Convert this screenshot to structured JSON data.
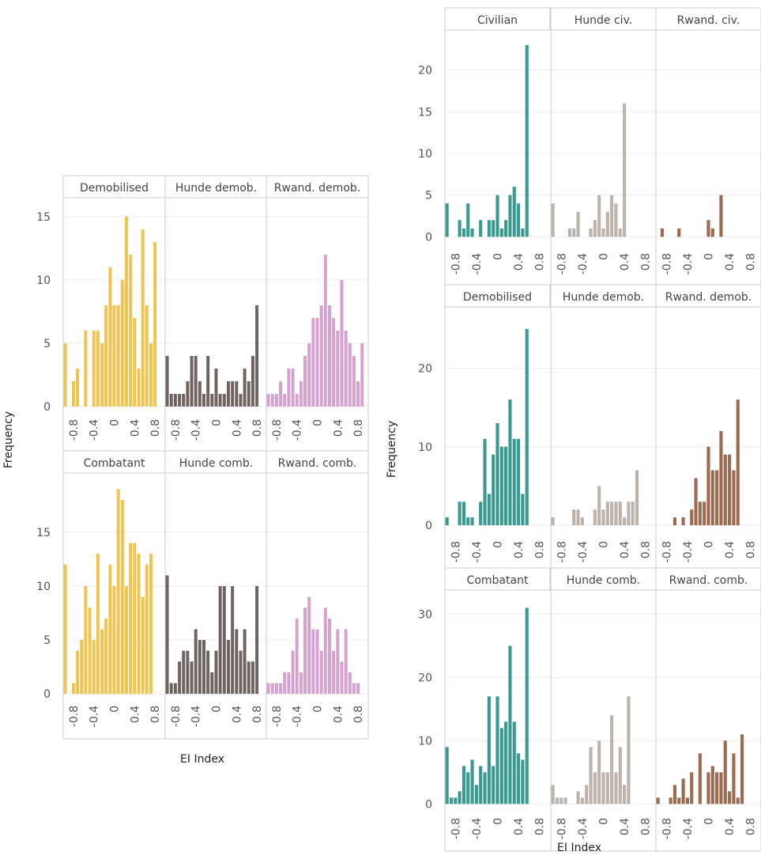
{
  "colors": {
    "demob_group": "#F0C44E",
    "hunde_demob": "#6E6360",
    "rwand_demob": "#D5A2CF",
    "civ_group": "#3A9A90",
    "hunde_civ": "#BDB3AD",
    "rwand_civ": "#9B6A50"
  },
  "chart_data": [
    {
      "type": "bar",
      "ylabel": "Frequency",
      "xlabel": "EI Index",
      "x_ticks": [
        "-0.8",
        "-0.4",
        "0",
        "0.4",
        "0.8"
      ],
      "bin_centers": [
        -0.96,
        -0.88,
        -0.8,
        -0.72,
        -0.64,
        -0.56,
        -0.48,
        -0.4,
        -0.32,
        -0.24,
        -0.16,
        -0.08,
        0.0,
        0.08,
        0.16,
        0.24,
        0.32,
        0.4,
        0.48,
        0.56,
        0.64,
        0.72,
        0.8,
        0.88,
        0.96
      ],
      "xlim": [
        -1,
        1
      ],
      "rows": [
        {
          "ylim": [
            -0.5,
            16.5
          ],
          "y_ticks": [
            0,
            5,
            10,
            15
          ],
          "panels": [
            {
              "title": "Demobilised",
              "color_key": "demob_group",
              "values": [
                5,
                0,
                2,
                3,
                0,
                6,
                0,
                6,
                6,
                5,
                8,
                11,
                8,
                8,
                10,
                15,
                12,
                7,
                3,
                14,
                8,
                5,
                13,
                0,
                0
              ]
            },
            {
              "title": "Hunde demob.",
              "color_key": "hunde_demob",
              "values": [
                4,
                1,
                1,
                1,
                1,
                2,
                4,
                4,
                2,
                1,
                4,
                1,
                3,
                1,
                1,
                2,
                2,
                2,
                1,
                3,
                2,
                4,
                8,
                0,
                0
              ]
            },
            {
              "title": "Rwand. demob.",
              "color_key": "rwand_demob",
              "values": [
                1,
                1,
                1,
                2,
                1,
                3,
                3,
                1,
                2,
                4,
                5,
                7,
                7,
                8,
                12,
                8,
                7,
                6,
                10,
                6,
                5,
                4,
                2,
                5,
                0
              ]
            }
          ]
        },
        {
          "ylim": [
            -0.5,
            20.5
          ],
          "y_ticks": [
            0,
            5,
            10,
            15
          ],
          "panels": [
            {
              "title": "Combatant",
              "color_key": "demob_group",
              "values": [
                12,
                0,
                1,
                4,
                5,
                10,
                8,
                5,
                13,
                6,
                7,
                12,
                10,
                19,
                18,
                10,
                14,
                14,
                13,
                9,
                12,
                13,
                0,
                0,
                0
              ]
            },
            {
              "title": "Hunde comb.",
              "color_key": "hunde_demob",
              "values": [
                11,
                1,
                1,
                3,
                4,
                4,
                3,
                6,
                5,
                5,
                4,
                2,
                4,
                10,
                10,
                5,
                10,
                6,
                4,
                6,
                3,
                3,
                10,
                0,
                0
              ]
            },
            {
              "title": "Rwand. comb.",
              "color_key": "rwand_demob",
              "values": [
                1,
                1,
                1,
                1,
                2,
                2,
                4,
                7,
                2,
                8,
                9,
                6,
                6,
                4,
                8,
                7,
                4,
                6,
                3,
                6,
                2,
                1,
                1,
                0,
                0
              ]
            }
          ]
        }
      ]
    },
    {
      "type": "bar",
      "ylabel": "Frequency",
      "xlabel": "EI Index",
      "x_ticks": [
        "-0.8",
        "-0.4",
        "0",
        "0.4",
        "0.8"
      ],
      "bin_centers": [
        -0.96,
        -0.88,
        -0.8,
        -0.72,
        -0.64,
        -0.56,
        -0.48,
        -0.4,
        -0.32,
        -0.24,
        -0.16,
        -0.08,
        0.0,
        0.08,
        0.16,
        0.24,
        0.32,
        0.4,
        0.48,
        0.56,
        0.64,
        0.72,
        0.8,
        0.88,
        0.96
      ],
      "xlim": [
        -1,
        1
      ],
      "rows": [
        {
          "ylim": [
            -1.2,
            24.8
          ],
          "y_ticks": [
            0,
            5,
            10,
            15,
            20
          ],
          "panels": [
            {
              "title": "Civilian",
              "color_key": "civ_group",
              "values": [
                4,
                0,
                0,
                2,
                1,
                4,
                1,
                0,
                2,
                0,
                2,
                2,
                5,
                1,
                2,
                5,
                6,
                4,
                1,
                23,
                0,
                0,
                0,
                0,
                0
              ]
            },
            {
              "title": "Hunde civ.",
              "color_key": "hunde_civ",
              "values": [
                4,
                0,
                0,
                0,
                1,
                1,
                3,
                0,
                0,
                1,
                2,
                5,
                1,
                3,
                5,
                4,
                1,
                16,
                0,
                0,
                0,
                0,
                0,
                0,
                0
              ]
            },
            {
              "title": "Rwand. civ.",
              "color_key": "rwand_civ",
              "values": [
                0,
                1,
                0,
                0,
                0,
                1,
                0,
                0,
                0,
                0,
                0,
                0,
                2,
                1,
                0,
                5,
                0,
                0,
                0,
                0,
                0,
                0,
                0,
                0,
                0
              ]
            }
          ]
        },
        {
          "ylim": [
            -1.2,
            27.8
          ],
          "y_ticks": [
            0,
            10,
            20
          ],
          "panels": [
            {
              "title": "Demobilised",
              "color_key": "civ_group",
              "values": [
                1,
                0,
                0,
                3,
                3,
                1,
                1,
                0,
                3,
                11,
                4,
                9,
                13,
                10,
                10,
                16,
                11,
                11,
                4,
                25,
                0,
                0,
                0,
                0,
                0
              ]
            },
            {
              "title": "Hunde demob.",
              "color_key": "hunde_civ",
              "values": [
                1,
                0,
                0,
                0,
                0,
                2,
                2,
                1,
                0,
                0,
                2,
                5,
                2,
                3,
                3,
                3,
                3,
                1,
                3,
                3,
                7,
                0,
                0,
                0,
                0
              ]
            },
            {
              "title": "Rwand. demob.",
              "color_key": "rwand_civ",
              "values": [
                0,
                0,
                0,
                0,
                1,
                0,
                1,
                0,
                2,
                6,
                3,
                3,
                10,
                7,
                7,
                12,
                9,
                9,
                7,
                16,
                0,
                0,
                0,
                0,
                0
              ]
            }
          ]
        },
        {
          "ylim": [
            -1.2,
            33.8
          ],
          "y_ticks": [
            0,
            10,
            20,
            30
          ],
          "panels": [
            {
              "title": "Combatant",
              "color_key": "civ_group",
              "values": [
                9,
                1,
                1,
                2,
                6,
                5,
                7,
                3,
                6,
                5,
                17,
                6,
                17,
                12,
                13,
                25,
                13,
                8,
                7,
                31,
                0,
                0,
                0,
                0,
                0
              ]
            },
            {
              "title": "Hunde comb.",
              "color_key": "hunde_civ",
              "values": [
                3,
                1,
                1,
                1,
                0,
                0,
                2,
                1,
                3,
                9,
                5,
                10,
                5,
                5,
                14,
                5,
                9,
                3,
                17,
                0,
                0,
                0,
                0,
                0,
                0
              ]
            },
            {
              "title": "Rwand. comb.",
              "color_key": "rwand_civ",
              "values": [
                1,
                0,
                0,
                1,
                3,
                1,
                4,
                1,
                5,
                0,
                8,
                0,
                5,
                6,
                5,
                5,
                10,
                2,
                8,
                1,
                11,
                0,
                0,
                0,
                0
              ]
            }
          ]
        }
      ]
    }
  ]
}
